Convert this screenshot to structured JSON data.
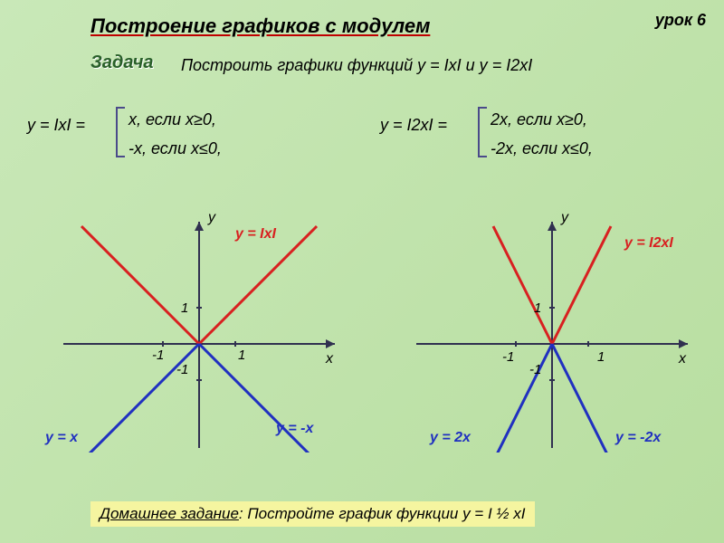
{
  "lesson": "урок 6",
  "title": "Построение графиков с модулем",
  "task_label": "Задача",
  "task_desc": "Построить  графики функций y = IхI и y = I2хI",
  "def1": {
    "lhs": "y = IхI = ",
    "case1": "х, если х≥0,",
    "case2": "-х, если х≤0,"
  },
  "def2": {
    "lhs": "y = I2хI = ",
    "case1": "2х, если х≥0,",
    "case2": "-2х, если х≤0,"
  },
  "axes": {
    "x": "х",
    "y": "у",
    "one": "1",
    "neg_one": "-1"
  },
  "chart1": {
    "fn1": "y = IхI",
    "fn2": "y = х",
    "fn3": "y = -х",
    "colors": {
      "v": "#d82020",
      "pos": "#2030c0",
      "neg": "#2030c0",
      "axis": "#303050"
    },
    "slope": 1
  },
  "chart2": {
    "fn1": "y = I2хI",
    "fn2": "y = 2х",
    "fn3": "y = -2х",
    "colors": {
      "v": "#d82020",
      "pos": "#2030c0",
      "neg": "#2030c0",
      "axis": "#303050"
    },
    "slope": 2
  },
  "homework": "Домашнее задание: Постройте график функции y = I ½ хI",
  "style": {
    "axis_color": "#303050",
    "line_width_axis": 2,
    "line_width_fn": 3,
    "tick_len": 6
  }
}
